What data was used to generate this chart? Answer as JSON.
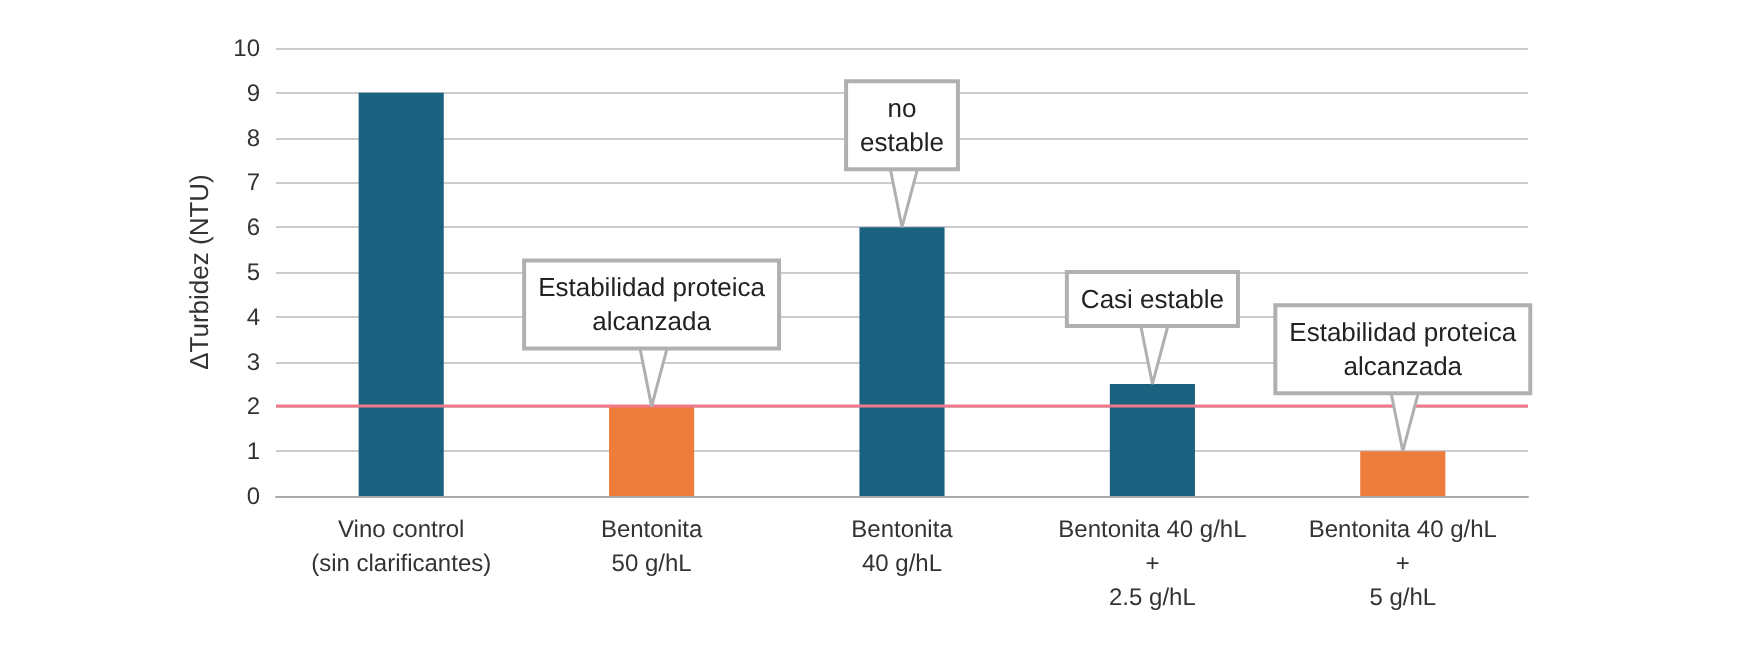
{
  "chart_data": {
    "type": "bar",
    "ylabel": "ΔTurbidez (NTU)",
    "categories": [
      "Vino control\n(sin clarificantes)",
      "Bentonita\n50 g/hL",
      "Bentonita\n40 g/hL",
      "Bentonita 40 g/hL\n+\n2.5 g/hL",
      "Bentonita 40 g/hL\n+\n5 g/hL"
    ],
    "values": [
      9,
      2,
      6,
      2.5,
      1
    ],
    "colors": [
      "#1b6281",
      "#ed7d3a",
      "#1b6281",
      "#1b6281",
      "#ed7d3a"
    ],
    "ylim": [
      0,
      10
    ],
    "yticks": [
      0,
      1,
      2,
      3,
      4,
      5,
      6,
      7,
      8,
      9,
      10
    ],
    "grid": "y",
    "ref_lines": [
      {
        "axis": "y",
        "value": 2,
        "color": "#f07a8c"
      }
    ],
    "annotations": [
      {
        "text": "Estabilidad proteica\nalcanzada",
        "x": "Bentonita\n50 g/hL",
        "y": 2
      },
      {
        "text": "no\nestable",
        "x": "Bentonita\n40 g/hL",
        "y": 6
      },
      {
        "text": "Casi estable",
        "x": "Bentonita 40 g/hL\n+\n2.5 g/hL",
        "y": 2.5
      },
      {
        "text": "Estabilidad proteica\nalcanzada",
        "x": "Bentonita 40 g/hL\n+\n5 g/hL",
        "y": 1
      }
    ]
  }
}
